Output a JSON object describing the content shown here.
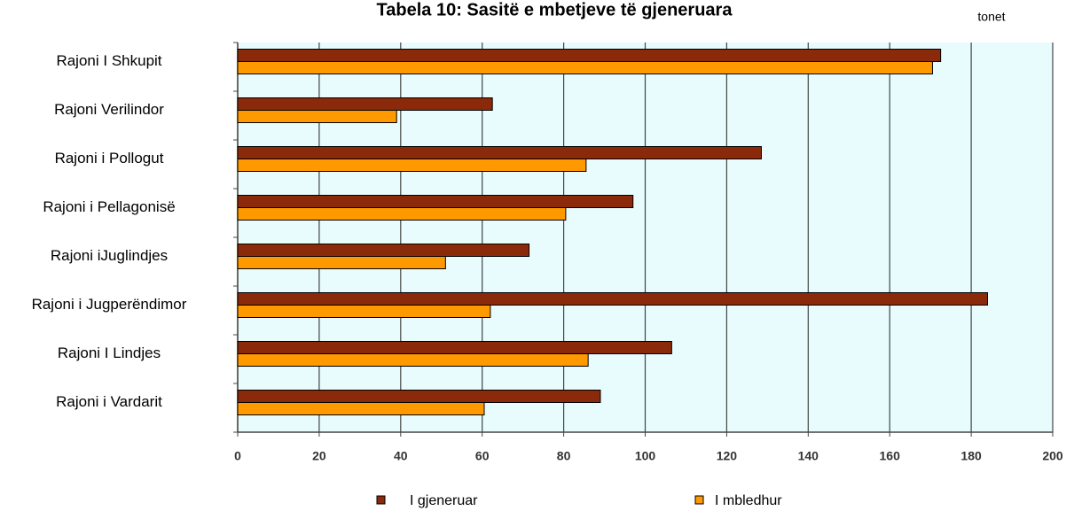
{
  "chart_data": {
    "type": "bar",
    "orientation": "horizontal",
    "title": "Tabela 10: Sasitë e mbetjeve të gjeneruara",
    "x_label": "tonet",
    "categories": [
      "Rajoni I Shkupit",
      "Rajoni Verilindor",
      "Rajoni i Pollogut",
      "Rajoni i Pellagonisë",
      "Rajoni iJuglindjes",
      "Rajoni i Jugperëndimor",
      "Rajoni I Lindjes",
      "Rajoni i Vardarit"
    ],
    "series": [
      {
        "name": "I gjeneruar",
        "color": "#8b2a0a",
        "values": [
          172.5,
          62.5,
          128.5,
          97,
          71.5,
          184,
          106.5,
          89
        ]
      },
      {
        "name": "I mbledhur",
        "color": "#ff9900",
        "values": [
          170.5,
          39,
          85.5,
          80.5,
          51,
          62,
          86,
          60.5
        ]
      }
    ],
    "xlim": [
      0,
      200
    ],
    "xticks": [
      0,
      20,
      40,
      60,
      80,
      100,
      120,
      140,
      160,
      180,
      200
    ],
    "grid": true,
    "legend": "bottom"
  }
}
